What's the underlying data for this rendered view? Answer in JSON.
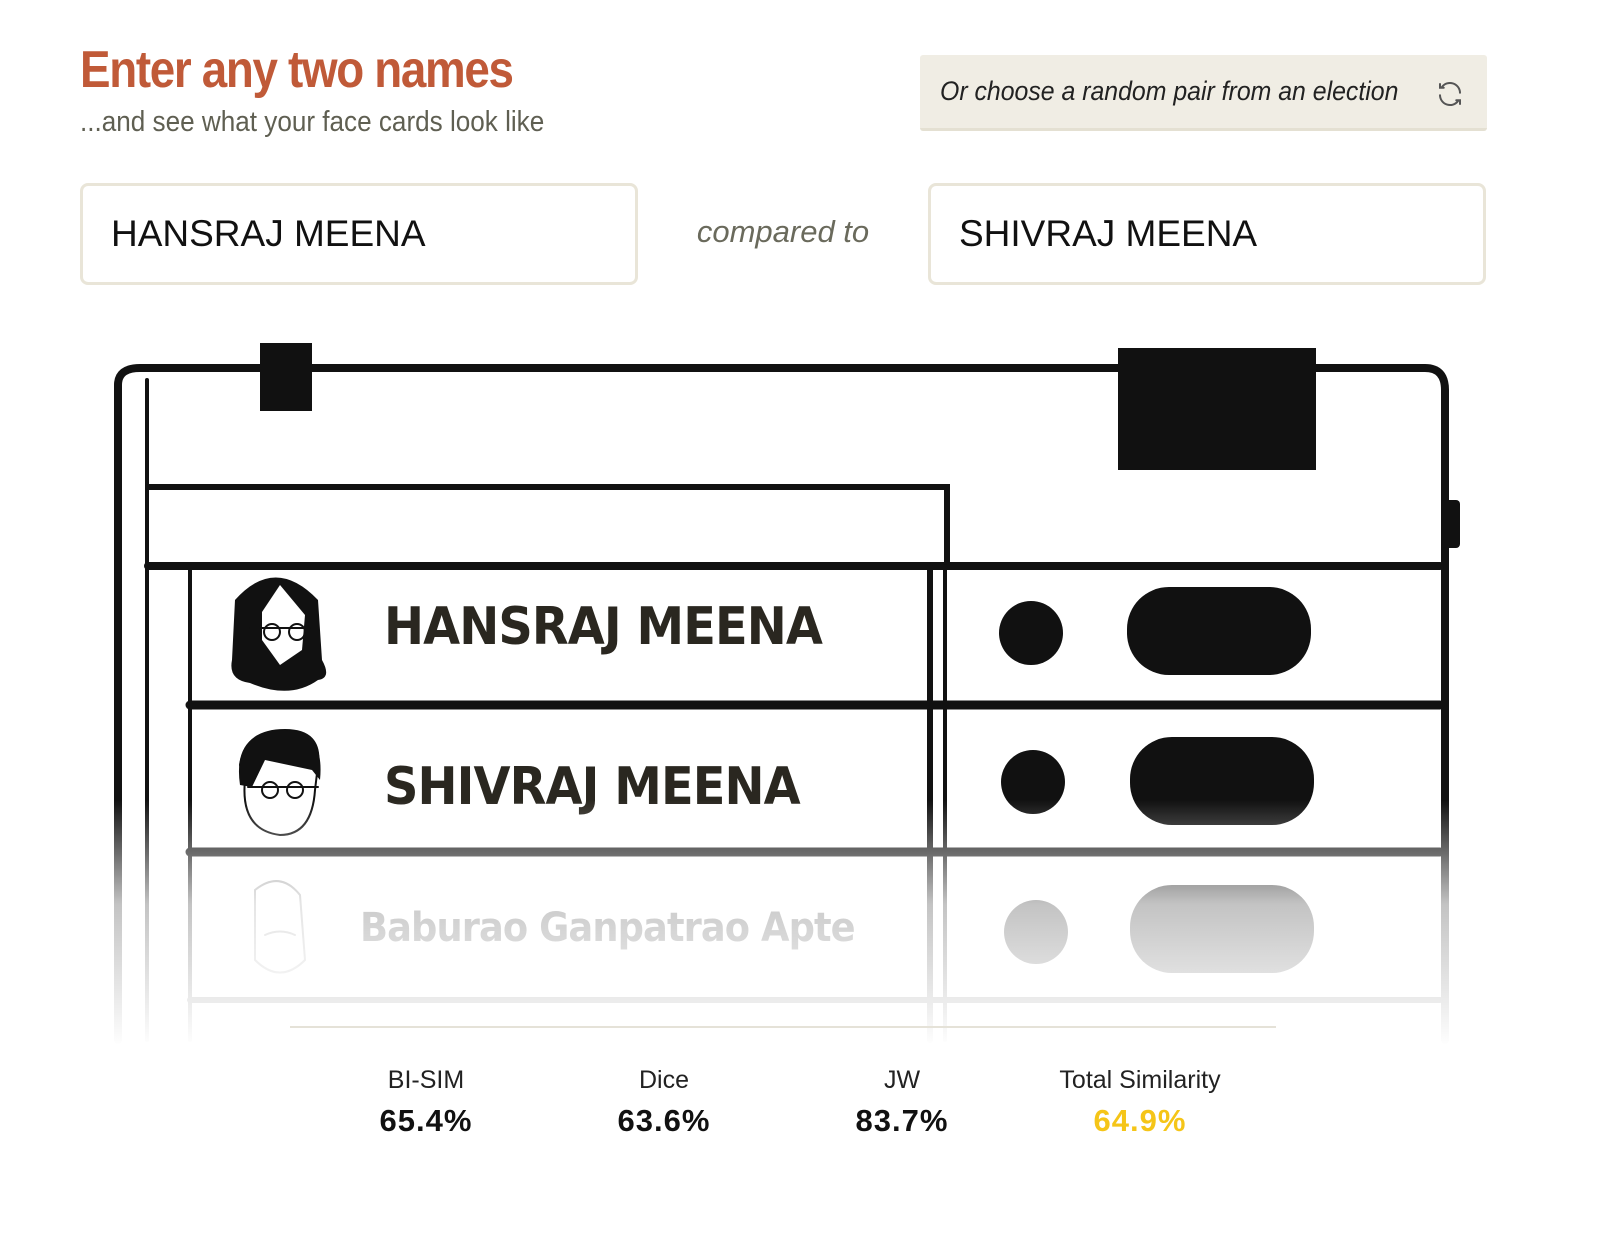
{
  "header": {
    "title": "Enter any two names",
    "subtitle": "...and see what your face cards look like",
    "random_button_label": "Or choose a random pair from an election",
    "random_button_icon": "refresh-icon"
  },
  "inputs": {
    "name1": "HANSRAJ MEENA",
    "connector": "compared to",
    "name2": "SHIVRAJ MEENA"
  },
  "ballot": {
    "candidates": [
      {
        "name": "HANSRAJ MEENA",
        "avatar": "bearded-face-with-glasses"
      },
      {
        "name": "SHIVRAJ MEENA",
        "avatar": "face-with-glasses"
      },
      {
        "name": "Baburao Ganpatrao Apte",
        "avatar": "mustached-face"
      }
    ]
  },
  "stats": [
    {
      "label": "BI-SIM",
      "value": "65.4%"
    },
    {
      "label": "Dice",
      "value": "63.6%"
    },
    {
      "label": "JW",
      "value": "83.7%"
    },
    {
      "label": "Total Similarity",
      "value": "64.9%",
      "color": "#f5c518"
    }
  ],
  "colors": {
    "title": "#c05a38",
    "accent_total": "#f5c518",
    "button_bg": "#f0ede4"
  }
}
